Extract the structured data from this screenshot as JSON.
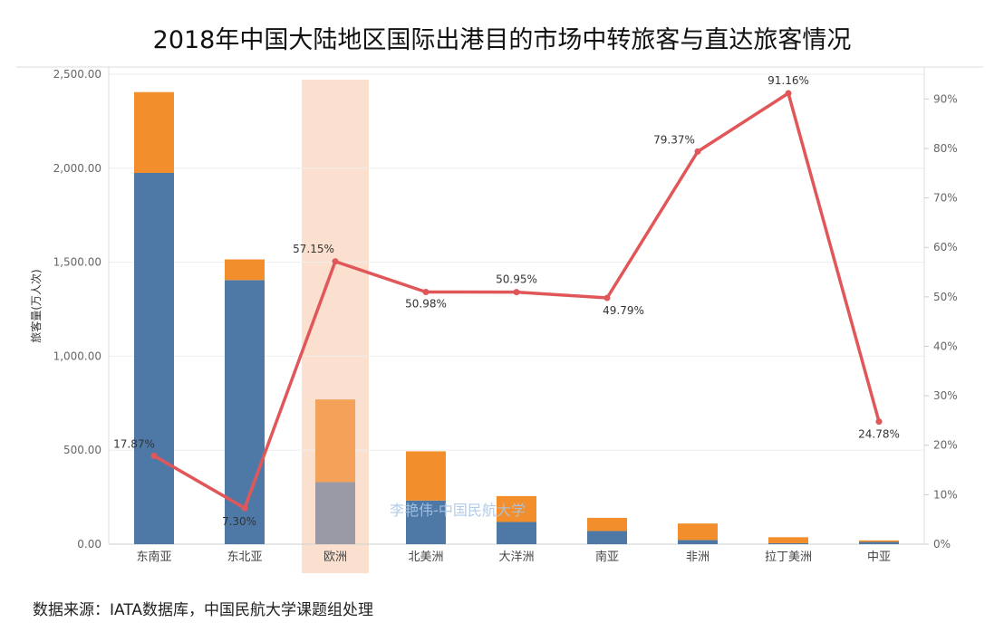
{
  "title": "2018年中国大陆地区国际出港目的市场中转旅客与直达旅客情况",
  "source": "数据来源：IATA数据库，中国民航大学课题组处理",
  "watermark": "李艳伟-中国民航大学",
  "colors": {
    "direct": "#4e79a7",
    "transfer": "#f28e2b",
    "direct_highlight": "#9a9aa6",
    "transfer_highlight": "#f4a259",
    "highlight_band": "#fbe0cf",
    "line": "#e15759"
  },
  "chart_data": {
    "type": "bar",
    "categories": [
      "东南亚",
      "东北亚",
      "欧洲",
      "北美洲",
      "大洋洲",
      "南亚",
      "非洲",
      "拉丁美洲",
      "中亚"
    ],
    "highlighted_category": "欧洲",
    "series": [
      {
        "values": [
          1975,
          1405,
          330,
          232,
          118,
          70,
          22,
          5,
          12
        ]
      },
      {
        "values": [
          430,
          110,
          440,
          262,
          138,
          70,
          88,
          32,
          8
        ]
      }
    ],
    "line_series": {
      "values": [
        17.87,
        7.3,
        57.15,
        50.98,
        50.95,
        49.79,
        79.37,
        91.16,
        24.78
      ],
      "labels": [
        "17.87%",
        "7.30%",
        "57.15%",
        "50.98%",
        "50.95%",
        "49.79%",
        "79.37%",
        "91.16%",
        "24.78%"
      ]
    },
    "ylabel": "旅客量(万人次)",
    "ylim": [
      0,
      2500
    ],
    "y_ticks": [
      "0.00",
      "500.00",
      "1,000.00",
      "1,500.00",
      "2,000.00",
      "2,500.00"
    ],
    "y2lim": [
      0,
      95
    ],
    "y2_ticks": [
      "0%",
      "10%",
      "20%",
      "30%",
      "40%",
      "50%",
      "60%",
      "70%",
      "80%",
      "90%"
    ],
    "grid": true
  }
}
